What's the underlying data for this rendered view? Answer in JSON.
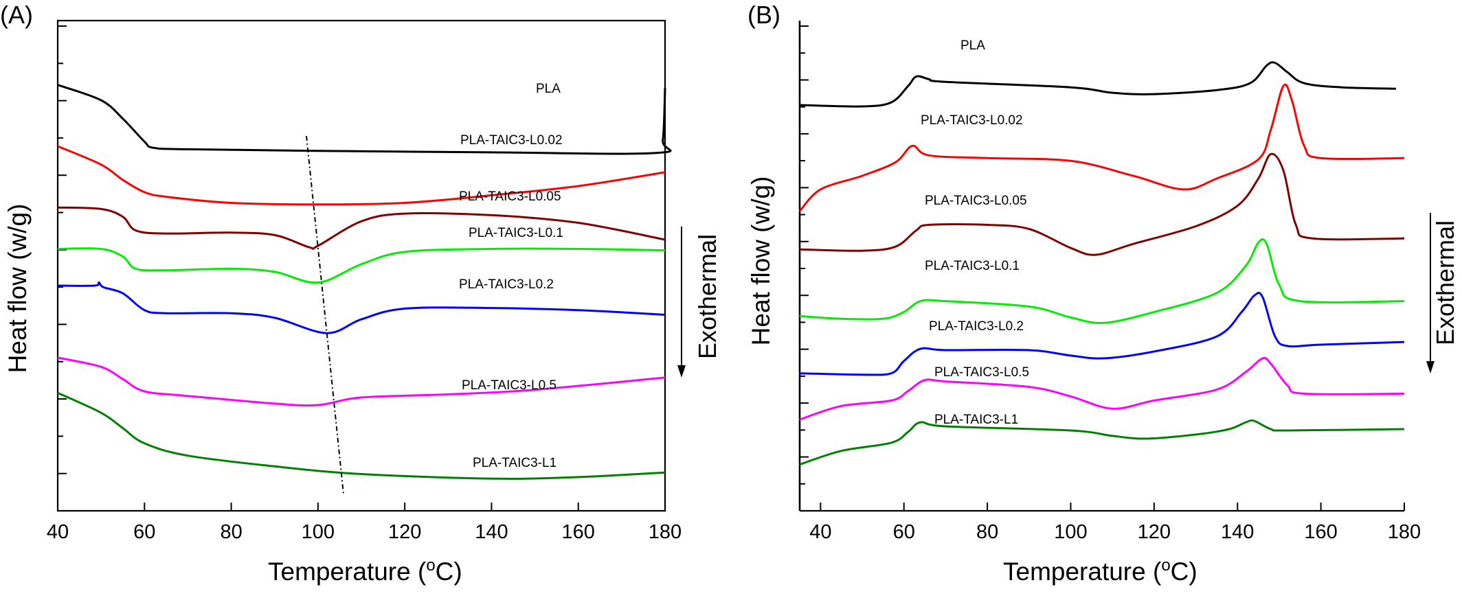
{
  "chart_data": [
    {
      "panel": "(A)",
      "type": "line",
      "xlabel_main": "Temperature (",
      "xlabel_sup": "o",
      "xlabel_tail": "C)",
      "ylabel": "Heat flow (w/g)",
      "xlim": [
        40,
        180
      ],
      "xticks": [
        40,
        60,
        80,
        100,
        120,
        140,
        160,
        180
      ],
      "y_tick_labels": false,
      "annotation": "Exothermal",
      "series": [
        {
          "name": "PLA",
          "color": "#000000",
          "points": [
            [
              40,
              10.4
            ],
            [
              50,
              9.9
            ],
            [
              55,
              9.3
            ],
            [
              60,
              8.55
            ],
            [
              62,
              8.35
            ],
            [
              70,
              8.3
            ],
            [
              100,
              8.25
            ],
            [
              140,
              8.2
            ],
            [
              178,
              8.18
            ],
            [
              179.5,
              8.6
            ],
            [
              180,
              10.3
            ]
          ]
        },
        {
          "name": "PLA-TAIC3-L0.02",
          "color": "#ff0000",
          "points": [
            [
              40,
              8.4
            ],
            [
              50,
              7.8
            ],
            [
              55,
              7.3
            ],
            [
              60,
              6.9
            ],
            [
              65,
              6.75
            ],
            [
              80,
              6.55
            ],
            [
              100,
              6.5
            ],
            [
              120,
              6.55
            ],
            [
              140,
              6.8
            ],
            [
              160,
              7.1
            ],
            [
              180,
              7.55
            ]
          ]
        },
        {
          "name": "PLA-TAIC3-L0.05",
          "color": "#800000",
          "points": [
            [
              40,
              6.4
            ],
            [
              50,
              6.35
            ],
            [
              55,
              6.1
            ],
            [
              58,
              5.65
            ],
            [
              65,
              5.55
            ],
            [
              80,
              5.58
            ],
            [
              90,
              5.5
            ],
            [
              98,
              5.1
            ],
            [
              100,
              5.15
            ],
            [
              110,
              5.95
            ],
            [
              120,
              6.2
            ],
            [
              140,
              6.15
            ],
            [
              160,
              5.9
            ],
            [
              180,
              5.35
            ]
          ]
        },
        {
          "name": "PLA-TAIC3-L0.1",
          "color": "#00ee00",
          "points": [
            [
              40,
              5.05
            ],
            [
              50,
              5.05
            ],
            [
              55,
              4.8
            ],
            [
              58,
              4.4
            ],
            [
              65,
              4.35
            ],
            [
              80,
              4.4
            ],
            [
              90,
              4.3
            ],
            [
              100,
              3.95
            ],
            [
              110,
              4.55
            ],
            [
              120,
              4.95
            ],
            [
              140,
              5.05
            ],
            [
              160,
              5.05
            ],
            [
              180,
              5.0
            ]
          ]
        },
        {
          "name": "PLA-TAIC3-L0.2",
          "color": "#0000ff",
          "points": [
            [
              40,
              3.85
            ],
            [
              48.5,
              3.85
            ],
            [
              49.5,
              3.95
            ],
            [
              50.5,
              3.8
            ],
            [
              55,
              3.6
            ],
            [
              60,
              3.05
            ],
            [
              65,
              2.95
            ],
            [
              80,
              2.95
            ],
            [
              90,
              2.8
            ],
            [
              102,
              2.3
            ],
            [
              110,
              2.75
            ],
            [
              120,
              3.1
            ],
            [
              140,
              3.12
            ],
            [
              160,
              3.05
            ],
            [
              180,
              2.9
            ]
          ]
        },
        {
          "name": "PLA-TAIC3-L0.5",
          "color": "#ff00ff",
          "points": [
            [
              40,
              1.5
            ],
            [
              50,
              1.2
            ],
            [
              55,
              0.8
            ],
            [
              60,
              0.4
            ],
            [
              70,
              0.25
            ],
            [
              90,
              0.0
            ],
            [
              100,
              -0.05
            ],
            [
              110,
              0.2
            ],
            [
              130,
              0.3
            ],
            [
              150,
              0.45
            ],
            [
              180,
              0.85
            ]
          ]
        },
        {
          "name": "PLA-TAIC3-L1",
          "color": "#008000",
          "points": [
            [
              40,
              0.35
            ],
            [
              50,
              -0.3
            ],
            [
              55,
              -0.8
            ],
            [
              60,
              -1.3
            ],
            [
              70,
              -1.7
            ],
            [
              90,
              -2.05
            ],
            [
              110,
              -2.3
            ],
            [
              140,
              -2.45
            ],
            [
              160,
              -2.4
            ],
            [
              180,
              -2.25
            ]
          ]
        }
      ]
    },
    {
      "panel": "(B)",
      "type": "line",
      "xlabel_main": "Temperature (",
      "xlabel_sup": "o",
      "xlabel_tail": "C)",
      "ylabel": "Heat flow (w/g)",
      "xlim": [
        35,
        180
      ],
      "xticks": [
        40,
        60,
        80,
        100,
        120,
        140,
        160,
        180
      ],
      "y_tick_labels": false,
      "annotation": "Exothermal",
      "series": [
        {
          "name": "PLA",
          "color": "#000000",
          "points": [
            [
              35,
              15.9
            ],
            [
              50,
              15.85
            ],
            [
              57,
              16.0
            ],
            [
              61,
              16.6
            ],
            [
              63,
              16.95
            ],
            [
              66,
              16.85
            ],
            [
              70,
              16.75
            ],
            [
              100,
              16.55
            ],
            [
              110,
              16.35
            ],
            [
              120,
              16.3
            ],
            [
              135,
              16.45
            ],
            [
              143,
              16.7
            ],
            [
              147,
              17.35
            ],
            [
              149,
              17.45
            ],
            [
              152,
              17.1
            ],
            [
              156,
              16.7
            ],
            [
              165,
              16.55
            ],
            [
              178,
              16.5
            ]
          ]
        },
        {
          "name": "PLA-TAIC3-L0.02",
          "color": "#ff0000",
          "points": [
            [
              35,
              12.0
            ],
            [
              40,
              12.8
            ],
            [
              50,
              13.3
            ],
            [
              58,
              13.8
            ],
            [
              62,
              14.4
            ],
            [
              66,
              14.05
            ],
            [
              80,
              13.95
            ],
            [
              100,
              13.85
            ],
            [
              115,
              13.3
            ],
            [
              127,
              12.8
            ],
            [
              135,
              13.2
            ],
            [
              145,
              13.9
            ],
            [
              148,
              15.0
            ],
            [
              151,
              16.6
            ],
            [
              153,
              16.1
            ],
            [
              156,
              14.4
            ],
            [
              160,
              13.95
            ],
            [
              180,
              13.95
            ]
          ]
        },
        {
          "name": "PLA-TAIC3-L0.05",
          "color": "#800000",
          "points": [
            [
              35,
              10.6
            ],
            [
              50,
              10.55
            ],
            [
              58,
              10.7
            ],
            [
              63,
              11.3
            ],
            [
              66,
              11.5
            ],
            [
              80,
              11.5
            ],
            [
              90,
              11.35
            ],
            [
              100,
              10.65
            ],
            [
              106,
              10.4
            ],
            [
              115,
              10.8
            ],
            [
              130,
              11.45
            ],
            [
              140,
              12.2
            ],
            [
              145,
              13.2
            ],
            [
              148,
              14.1
            ],
            [
              151,
              13.5
            ],
            [
              154,
              11.5
            ],
            [
              158,
              11.0
            ],
            [
              180,
              11.0
            ]
          ]
        },
        {
          "name": "PLA-TAIC3-L0.1",
          "color": "#00ee00",
          "points": [
            [
              35,
              8.15
            ],
            [
              45,
              8.05
            ],
            [
              55,
              8.05
            ],
            [
              60,
              8.3
            ],
            [
              64,
              8.7
            ],
            [
              70,
              8.7
            ],
            [
              90,
              8.5
            ],
            [
              100,
              8.1
            ],
            [
              108,
              7.9
            ],
            [
              120,
              8.3
            ],
            [
              135,
              9.0
            ],
            [
              142,
              10.0
            ],
            [
              145,
              10.85
            ],
            [
              147,
              10.8
            ],
            [
              150,
              9.3
            ],
            [
              155,
              8.7
            ],
            [
              180,
              8.7
            ]
          ]
        },
        {
          "name": "PLA-TAIC3-L0.2",
          "color": "#0000ff",
          "points": [
            [
              35,
              6.05
            ],
            [
              50,
              6.0
            ],
            [
              57,
              6.05
            ],
            [
              60,
              6.5
            ],
            [
              64,
              6.95
            ],
            [
              70,
              6.9
            ],
            [
              90,
              6.9
            ],
            [
              100,
              6.7
            ],
            [
              108,
              6.6
            ],
            [
              120,
              6.85
            ],
            [
              135,
              7.4
            ],
            [
              141,
              8.3
            ],
            [
              144,
              8.9
            ],
            [
              146,
              8.85
            ],
            [
              149,
              7.4
            ],
            [
              152,
              7.05
            ],
            [
              160,
              7.1
            ],
            [
              180,
              7.2
            ]
          ]
        },
        {
          "name": "PLA-TAIC3-L0.5",
          "color": "#ff00ff",
          "points": [
            [
              35,
              4.35
            ],
            [
              45,
              4.85
            ],
            [
              57,
              5.05
            ],
            [
              61,
              5.4
            ],
            [
              65,
              5.8
            ],
            [
              70,
              5.75
            ],
            [
              90,
              5.55
            ],
            [
              100,
              5.2
            ],
            [
              110,
              4.75
            ],
            [
              120,
              5.05
            ],
            [
              135,
              5.45
            ],
            [
              142,
              6.1
            ],
            [
              146,
              6.6
            ],
            [
              148,
              6.4
            ],
            [
              152,
              5.6
            ],
            [
              156,
              5.3
            ],
            [
              180,
              5.3
            ]
          ]
        },
        {
          "name": "PLA-TAIC3-L1",
          "color": "#008000",
          "points": [
            [
              35,
              2.7
            ],
            [
              45,
              3.2
            ],
            [
              57,
              3.5
            ],
            [
              61,
              3.9
            ],
            [
              64,
              4.25
            ],
            [
              70,
              4.1
            ],
            [
              100,
              3.95
            ],
            [
              110,
              3.75
            ],
            [
              118,
              3.65
            ],
            [
              130,
              3.8
            ],
            [
              138,
              4.0
            ],
            [
              142,
              4.25
            ],
            [
              144,
              4.3
            ],
            [
              148,
              4.0
            ],
            [
              152,
              3.95
            ],
            [
              180,
              4.0
            ]
          ]
        }
      ]
    }
  ]
}
